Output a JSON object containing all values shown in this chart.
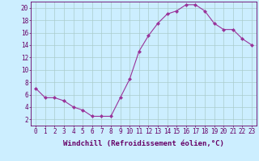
{
  "x": [
    0,
    1,
    2,
    3,
    4,
    5,
    6,
    7,
    8,
    9,
    10,
    11,
    12,
    13,
    14,
    15,
    16,
    17,
    18,
    19,
    20,
    21,
    22,
    23
  ],
  "y": [
    7.0,
    5.5,
    5.5,
    5.0,
    4.0,
    3.5,
    2.5,
    2.5,
    2.5,
    5.5,
    8.5,
    13.0,
    15.5,
    17.5,
    19.0,
    19.5,
    20.5,
    20.5,
    19.5,
    17.5,
    16.5,
    16.5,
    15.0,
    14.0
  ],
  "line_color": "#993399",
  "marker": "D",
  "marker_size": 2.0,
  "bg_color": "#cceeff",
  "grid_color": "#aacccc",
  "xlabel": "Windchill (Refroidissement éolien,°C)",
  "xlim": [
    -0.5,
    23.5
  ],
  "ylim": [
    1,
    21
  ],
  "yticks": [
    2,
    4,
    6,
    8,
    10,
    12,
    14,
    16,
    18,
    20
  ],
  "xticks": [
    0,
    1,
    2,
    3,
    4,
    5,
    6,
    7,
    8,
    9,
    10,
    11,
    12,
    13,
    14,
    15,
    16,
    17,
    18,
    19,
    20,
    21,
    22,
    23
  ],
  "tick_color": "#660066",
  "label_color": "#660066",
  "label_fontsize": 6.5,
  "tick_fontsize": 5.5,
  "spine_color": "#660066",
  "linewidth": 0.8
}
